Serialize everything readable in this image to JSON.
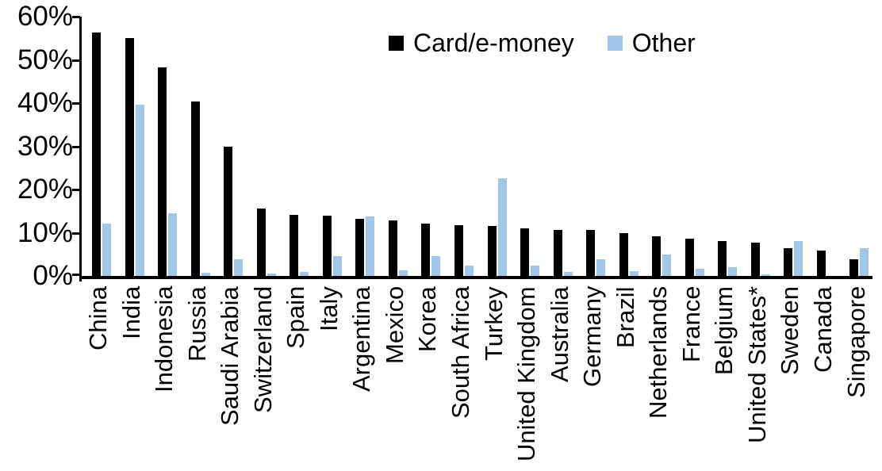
{
  "chart_data": {
    "type": "bar",
    "title": "",
    "xlabel": "",
    "ylabel": "",
    "ylim": [
      0,
      60
    ],
    "y_ticks": [
      {
        "label": "60%",
        "value": 60
      },
      {
        "label": "50%",
        "value": 50
      },
      {
        "label": "40%",
        "value": 40
      },
      {
        "label": "30%",
        "value": 30
      },
      {
        "label": "20%",
        "value": 20
      },
      {
        "label": "10%",
        "value": 10
      },
      {
        "label": "0%",
        "value": 0
      }
    ],
    "grid": false,
    "legend_position": "top-center",
    "categories": [
      "China",
      "India",
      "Indonesia",
      "Russia",
      "Saudi Arabia",
      "Switzerland",
      "Spain",
      "Italy",
      "Argentina",
      "Mexico",
      "Korea",
      "South Africa",
      "Turkey",
      "United Kingdom",
      "Australia",
      "Germany",
      "Brazil",
      "Netherlands",
      "France",
      "Belgium",
      "United States*",
      "Sweden",
      "Canada",
      "Singapore"
    ],
    "series": [
      {
        "name": "Card/e-money",
        "color": "#000000",
        "values": [
          56.4,
          55.0,
          48.2,
          40.4,
          29.9,
          15.6,
          14.1,
          14.0,
          13.3,
          12.9,
          12.2,
          11.7,
          11.5,
          11.0,
          10.7,
          10.6,
          9.9,
          9.2,
          8.7,
          8.1,
          7.8,
          6.4,
          5.9,
          3.8
        ]
      },
      {
        "name": "Other",
        "color": "#A2C6E7",
        "values": [
          12.2,
          39.6,
          14.5,
          0.8,
          3.8,
          0.6,
          0.9,
          4.6,
          13.8,
          1.2,
          4.6,
          2.3,
          22.5,
          2.3,
          0.9,
          3.8,
          1.1,
          4.9,
          1.6,
          2.0,
          0.3,
          8.0,
          0.0,
          6.5
        ]
      }
    ]
  }
}
